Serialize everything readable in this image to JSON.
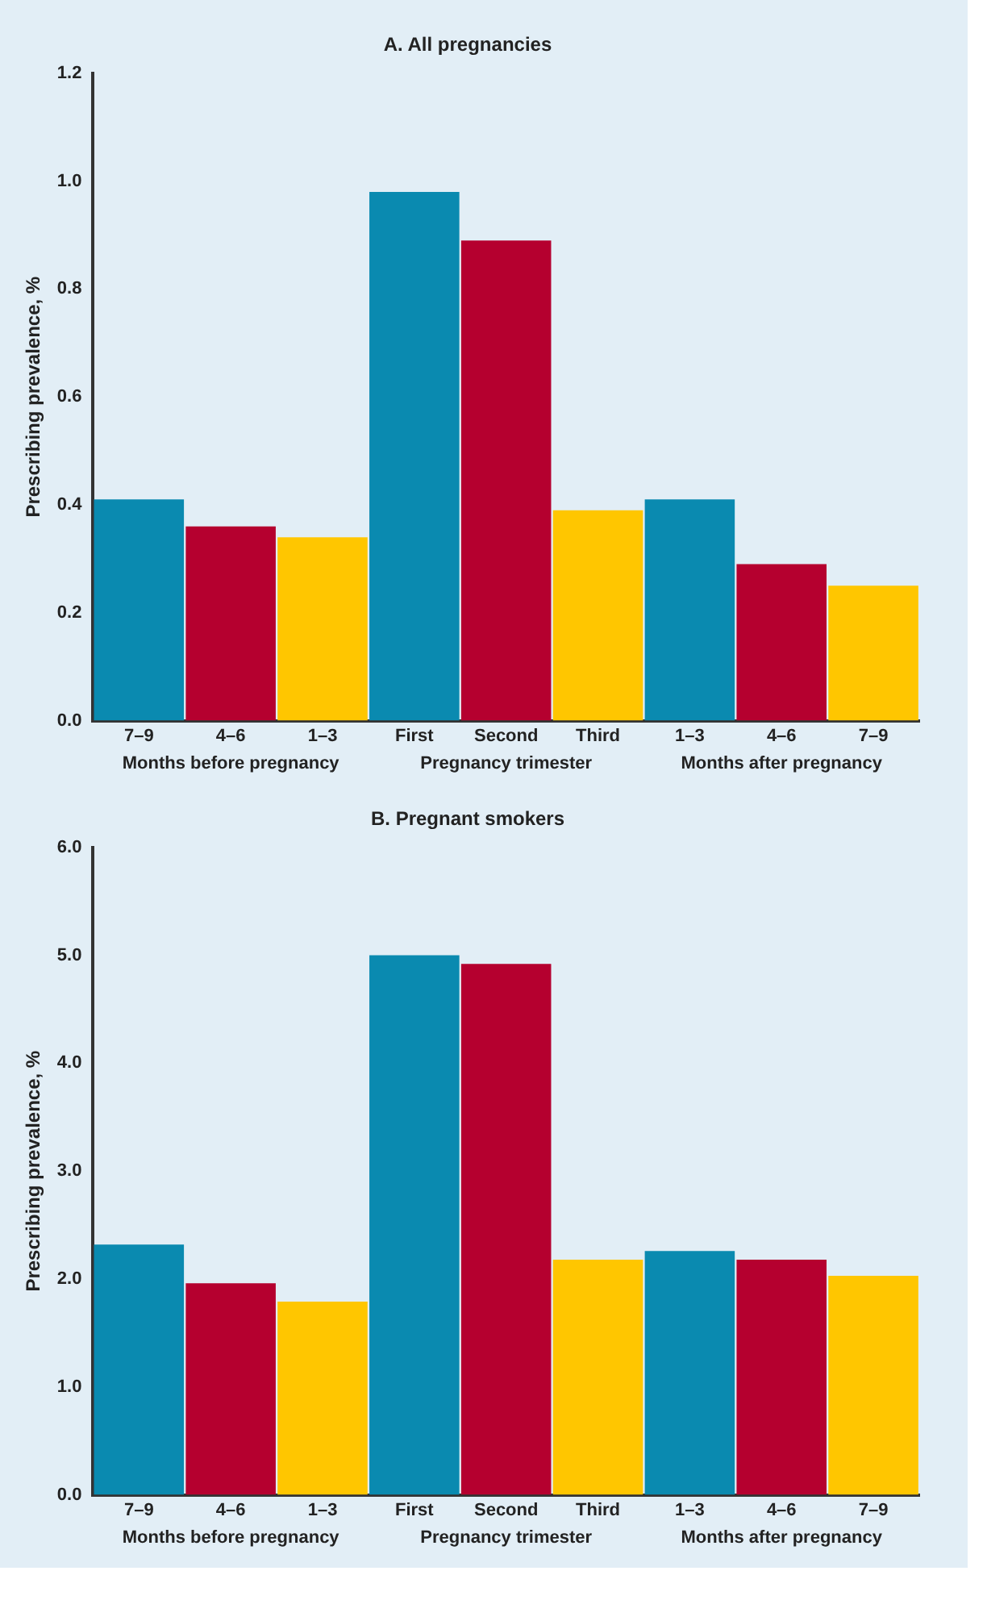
{
  "chart_data": [
    {
      "type": "bar",
      "title": "A. All pregnancies",
      "ylabel": "Prescribing prevalence, %",
      "categories": [
        "7–9",
        "4–6",
        "1–3",
        "First",
        "Second",
        "Third",
        "1–3",
        "4–6",
        "7–9"
      ],
      "values": [
        0.41,
        0.36,
        0.34,
        0.98,
        0.89,
        0.39,
        0.41,
        0.29,
        0.25
      ],
      "colors": [
        "#0a8ab0",
        "#b5002f",
        "#ffc600",
        "#0a8ab0",
        "#b5002f",
        "#ffc600",
        "#0a8ab0",
        "#b5002f",
        "#ffc600"
      ],
      "ylim": [
        0,
        1.2
      ],
      "yticks": [
        {
          "value": 0,
          "label": "0.0"
        },
        {
          "value": 0.2,
          "label": "0.2"
        },
        {
          "value": 0.4,
          "label": "0.4"
        },
        {
          "value": 0.6,
          "label": "0.6"
        },
        {
          "value": 0.8,
          "label": "0.8"
        },
        {
          "value": 1,
          "label": "1.0"
        },
        {
          "value": 1.2,
          "label": "1.2"
        }
      ],
      "grid": false,
      "legend": false,
      "annotations": [
        "Months before pregnancy",
        "Pregnancy trimester",
        "Months after pregnancy"
      ]
    },
    {
      "type": "bar",
      "title": "B. Pregnant smokers",
      "ylabel": "Prescribing prevalence, %",
      "categories": [
        "7–9",
        "4–6",
        "1–3",
        "First",
        "Second",
        "Third",
        "1–3",
        "4–6",
        "7–9"
      ],
      "values": [
        2.32,
        1.96,
        1.79,
        5.0,
        4.92,
        2.18,
        2.26,
        2.18,
        2.03
      ],
      "colors": [
        "#0a8ab0",
        "#b5002f",
        "#ffc600",
        "#0a8ab0",
        "#b5002f",
        "#ffc600",
        "#0a8ab0",
        "#b5002f",
        "#ffc600"
      ],
      "ylim": [
        0,
        6
      ],
      "yticks": [
        {
          "value": 0,
          "label": "0.0"
        },
        {
          "value": 1,
          "label": "1.0"
        },
        {
          "value": 2,
          "label": "2.0"
        },
        {
          "value": 3,
          "label": "3.0"
        },
        {
          "value": 4,
          "label": "4.0"
        },
        {
          "value": 5,
          "label": "5.0"
        },
        {
          "value": 6,
          "label": "6.0"
        }
      ],
      "grid": false,
      "legend": false,
      "annotations": [
        "Months before pregnancy",
        "Pregnancy trimester",
        "Months after pregnancy"
      ]
    }
  ]
}
